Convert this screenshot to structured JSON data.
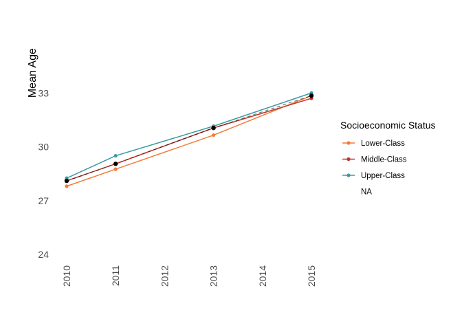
{
  "chart_data": {
    "type": "line",
    "ylabel": "Mean Age",
    "xlabel": "",
    "x_ticks": [
      "2010",
      "2011",
      "2012",
      "2013",
      "2014",
      "2015"
    ],
    "y_ticks": [
      "24",
      "27",
      "30",
      "33"
    ],
    "xlim": [
      2010,
      2015
    ],
    "ylim": [
      24,
      36
    ],
    "grid": false,
    "legend": {
      "title": "Socioeconomic Status",
      "placement": "right",
      "entries": [
        "Lower-Class",
        "Middle-Class",
        "Upper-Class",
        "NA"
      ]
    },
    "series": [
      {
        "name": "Lower-Class",
        "color": "#f47a3a",
        "x": [
          2010,
          2011,
          2013,
          2015
        ],
        "y": [
          27.8,
          28.75,
          30.65,
          32.85
        ]
      },
      {
        "name": "Middle-Class",
        "color": "#c0362c",
        "x": [
          2010,
          2011,
          2013,
          2015
        ],
        "y": [
          28.1,
          29.05,
          31.05,
          32.7
        ]
      },
      {
        "name": "Upper-Class",
        "color": "#3a9aa0",
        "x": [
          2010,
          2011,
          2013,
          2015
        ],
        "y": [
          28.25,
          29.5,
          31.15,
          33.0
        ]
      },
      {
        "name": "NA",
        "color": "#000000",
        "x": [
          2010,
          2011,
          2013,
          2015
        ],
        "y": [
          28.1,
          29.05,
          31.05,
          32.85
        ]
      }
    ]
  }
}
